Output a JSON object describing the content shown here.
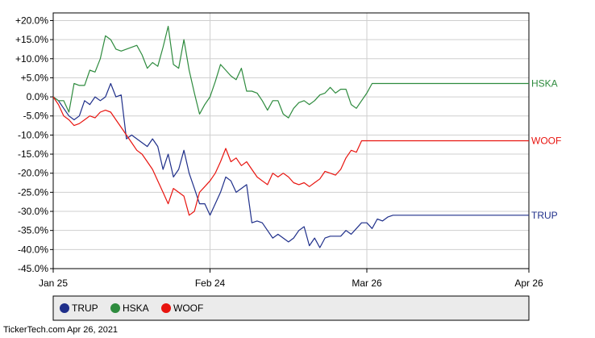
{
  "chart_data": {
    "type": "line",
    "title": "",
    "xlabel": "",
    "ylabel": "",
    "x_ticks": [
      "Jan 25",
      "Feb 24",
      "Mar 26",
      "Apr 26"
    ],
    "y_ticks": [
      "+20.0%",
      "+15.0%",
      "+10.0%",
      "+5.0%",
      "0.0%",
      "-5.0%",
      "-10.0%",
      "-15.0%",
      "-20.0%",
      "-25.0%",
      "-30.0%",
      "-35.0%",
      "-40.0%",
      "-45.0%"
    ],
    "ylim": [
      -45,
      22
    ],
    "x_range_days": [
      0,
      91
    ],
    "grid": true,
    "legend_position": "bottom",
    "series": [
      {
        "name": "TRUP",
        "color": "#1f2f8a",
        "days": [
          0,
          1,
          2,
          3,
          4,
          5,
          6,
          7,
          8,
          9,
          10,
          11,
          12,
          13,
          14,
          15,
          16,
          17,
          18,
          19,
          20,
          21,
          22,
          23,
          24,
          25,
          26,
          27,
          28,
          29,
          30,
          31,
          32,
          33,
          34,
          35,
          36,
          37,
          38,
          39,
          40,
          41,
          42,
          43,
          44,
          45,
          46,
          47,
          48,
          49,
          50,
          51,
          52,
          53,
          54,
          55,
          56,
          57,
          58,
          59,
          60,
          61,
          62,
          63,
          64,
          65,
          66,
          67,
          68,
          69,
          70,
          71,
          72,
          73,
          74,
          75,
          76,
          77,
          78,
          79,
          80,
          81,
          82,
          83,
          84,
          85,
          86,
          87,
          88,
          89,
          90,
          91
        ],
        "values": [
          0,
          -1,
          -3,
          -5,
          -6,
          -5,
          -1,
          -2,
          0,
          -1,
          0,
          3.5,
          0,
          0.5,
          -11,
          -10,
          -11,
          -12,
          -13,
          -11,
          -13,
          -19,
          -15,
          -21,
          -19,
          -14,
          -20,
          -24,
          -28,
          -28,
          -31,
          -28,
          -25,
          -21,
          -22,
          -25,
          -24,
          -23,
          -33,
          -32.5,
          -33,
          -35,
          -37,
          -36,
          -37,
          -38,
          -37,
          -35,
          -34,
          -39,
          -37,
          -39.5,
          -37,
          -36.5,
          -36.5,
          -36.5,
          -35,
          -36,
          -34.5,
          -33,
          -33,
          -34.5,
          -32,
          -32.5,
          -31.5,
          -31,
          -31,
          -31,
          -31,
          -31,
          -31,
          -31,
          -31,
          -31,
          -31,
          -31,
          -31,
          -31,
          -31,
          -31,
          -31,
          -31,
          -31,
          -31,
          -31,
          -31,
          -31,
          -31,
          -31,
          -31,
          -31,
          -31
        ]
      },
      {
        "name": "HSKA",
        "color": "#2e8b3e",
        "days": [
          0,
          1,
          2,
          3,
          4,
          5,
          6,
          7,
          8,
          9,
          10,
          11,
          12,
          13,
          14,
          15,
          16,
          17,
          18,
          19,
          20,
          21,
          22,
          23,
          24,
          25,
          26,
          27,
          28,
          29,
          30,
          31,
          32,
          33,
          34,
          35,
          36,
          37,
          38,
          39,
          40,
          41,
          42,
          43,
          44,
          45,
          46,
          47,
          48,
          49,
          50,
          51,
          52,
          53,
          54,
          55,
          56,
          57,
          58,
          59,
          60,
          61,
          62,
          63,
          64,
          65,
          66,
          67,
          68,
          69,
          70,
          71,
          72,
          73,
          74,
          75,
          76,
          77,
          78,
          79,
          80,
          81,
          82,
          83,
          84,
          85,
          86,
          87,
          88,
          89,
          90,
          91
        ],
        "values": [
          0,
          -1,
          -1,
          -4,
          3.5,
          3,
          3,
          7,
          6.5,
          10,
          16,
          15,
          12.5,
          12,
          12.5,
          13,
          13.5,
          11,
          7.5,
          9,
          8,
          13,
          18.5,
          8.5,
          7.5,
          15,
          7,
          1,
          -4.5,
          -2,
          0,
          4,
          8.5,
          7,
          5.5,
          4.5,
          7.5,
          1.5,
          1.5,
          1,
          -1,
          -3.5,
          -1,
          -1,
          -4.5,
          -5.5,
          -3,
          -1.5,
          -1,
          -2,
          -1,
          0.5,
          1,
          2.5,
          1,
          2,
          2,
          -2,
          -3,
          -1,
          1,
          3.5,
          3.5,
          3.5,
          3.5,
          3.5,
          3.5,
          3.5,
          3.5,
          3.5,
          3.5,
          3.5,
          3.5,
          3.5,
          3.5,
          3.5,
          3.5,
          3.5,
          3.5,
          3.5,
          3.5,
          3.5,
          3.5,
          3.5,
          3.5,
          3.5,
          3.5,
          3.5,
          3.5,
          3.5,
          3.5,
          3.5
        ]
      },
      {
        "name": "WOOF",
        "color": "#e8140f",
        "days": [
          0,
          1,
          2,
          3,
          4,
          5,
          6,
          7,
          8,
          9,
          10,
          11,
          12,
          13,
          14,
          15,
          16,
          17,
          18,
          19,
          20,
          21,
          22,
          23,
          24,
          25,
          26,
          27,
          28,
          29,
          30,
          31,
          32,
          33,
          34,
          35,
          36,
          37,
          38,
          39,
          40,
          41,
          42,
          43,
          44,
          45,
          46,
          47,
          48,
          49,
          50,
          51,
          52,
          53,
          54,
          55,
          56,
          57,
          58,
          59,
          60,
          61,
          62,
          63,
          64,
          65,
          66,
          67,
          68,
          69,
          70,
          71,
          72,
          73,
          74,
          75,
          76,
          77,
          78,
          79,
          80,
          81,
          82,
          83,
          84,
          85,
          86,
          87,
          88,
          89,
          90,
          91
        ],
        "values": [
          0,
          -2,
          -5,
          -6,
          -7.5,
          -7,
          -6,
          -5,
          -5.5,
          -4,
          -3.5,
          -4,
          -6,
          -8,
          -10,
          -12,
          -14,
          -15,
          -17,
          -19,
          -22,
          -25,
          -28,
          -24,
          -25,
          -26,
          -31,
          -30,
          -25,
          -23.5,
          -22,
          -20,
          -17,
          -13.5,
          -17,
          -16,
          -18,
          -17,
          -19,
          -21,
          -22,
          -23,
          -20,
          -21,
          -20,
          -21,
          -22.5,
          -23,
          -22.5,
          -23.5,
          -22.5,
          -21.5,
          -19.5,
          -20,
          -20.5,
          -19,
          -16,
          -14,
          -14.5,
          -11.5,
          -11.5,
          -11.5,
          -11.5,
          -11.5,
          -11.5,
          -11.5,
          -11.5,
          -11.5,
          -11.5,
          -11.5,
          -11.5,
          -11.5,
          -11.5,
          -11.5,
          -11.5,
          -11.5,
          -11.5,
          -11.5,
          -11.5,
          -11.5,
          -11.5,
          -11.5,
          -11.5,
          -11.5,
          -11.5,
          -11.5,
          -11.5,
          -11.5,
          -11.5,
          -11.5,
          -11.5,
          -11.5
        ]
      }
    ]
  },
  "footer": "TickerTech.com  Apr 26, 2021"
}
